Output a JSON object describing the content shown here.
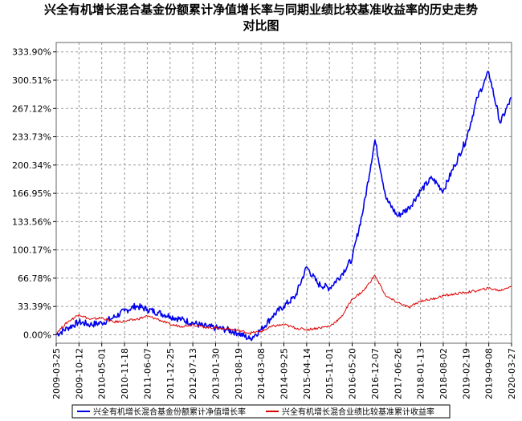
{
  "chart_data": {
    "type": "line",
    "title_line1": "兴全有机增长混合基金份额累计净值增长率与同期业绩比较基准收益率的历史走势",
    "title_line2": "对比图",
    "xlabel": "",
    "ylabel": "",
    "y_ticks": [
      "0.00%",
      "33.39%",
      "66.78%",
      "100.17%",
      "133.56%",
      "166.95%",
      "200.34%",
      "233.73%",
      "267.12%",
      "300.51%",
      "333.90%"
    ],
    "ylim": [
      -10,
      345
    ],
    "x_ticks": [
      "2009-03-25",
      "2009-10-12",
      "2010-05-01",
      "2010-11-18",
      "2011-06-07",
      "2011-12-25",
      "2012-07-13",
      "2013-01-30",
      "2013-08-19",
      "2014-03-08",
      "2014-09-25",
      "2015-04-14",
      "2015-11-01",
      "2016-05-20",
      "2016-12-07",
      "2017-06-26",
      "2018-01-13",
      "2018-08-02",
      "2019-02-19",
      "2019-09-08",
      "2020-03-27"
    ],
    "grid": true,
    "legend_position": "bottom",
    "colors": {
      "fund": "#0000ee",
      "benchmark": "#dd0000"
    },
    "series": [
      {
        "name": "兴全有机增长混合基金份额累计净值增长率",
        "x": [
          0,
          0.5,
          1,
          1.5,
          2,
          2.5,
          3,
          3.5,
          4,
          4.5,
          5,
          5.5,
          6,
          6.5,
          7,
          7.5,
          8,
          8.5,
          9,
          9.5,
          10,
          10.5,
          11,
          11.5,
          12,
          12.5,
          13,
          13.5,
          14,
          14.5,
          15,
          15.5,
          16,
          16.5,
          17,
          17.5,
          18,
          18.5,
          19,
          19.5,
          20
        ],
        "values": [
          0,
          8,
          15,
          12,
          14,
          20,
          28,
          34,
          30,
          26,
          22,
          18,
          14,
          10,
          8,
          6,
          2,
          -5,
          6,
          22,
          34,
          45,
          80,
          60,
          55,
          70,
          90,
          150,
          230,
          160,
          140,
          150,
          170,
          185,
          170,
          200,
          230,
          280,
          310,
          250,
          280
        ]
      },
      {
        "name": "兴全有机增长混合业绩比较基准累计收益率",
        "x": [
          0,
          0.5,
          1,
          1.5,
          2,
          2.5,
          3,
          3.5,
          4,
          4.5,
          5,
          5.5,
          6,
          6.5,
          7,
          7.5,
          8,
          8.5,
          9,
          9.5,
          10,
          10.5,
          11,
          11.5,
          12,
          12.5,
          13,
          13.5,
          14,
          14.5,
          15,
          15.5,
          16,
          16.5,
          17,
          17.5,
          18,
          18.5,
          19,
          19.5,
          20
        ],
        "values": [
          2,
          15,
          24,
          18,
          20,
          15,
          16,
          18,
          22,
          18,
          12,
          10,
          12,
          9,
          8,
          7,
          5,
          2,
          4,
          10,
          12,
          8,
          6,
          8,
          10,
          20,
          42,
          52,
          70,
          45,
          38,
          32,
          40,
          42,
          46,
          48,
          50,
          52,
          55,
          52,
          58
        ]
      }
    ]
  }
}
